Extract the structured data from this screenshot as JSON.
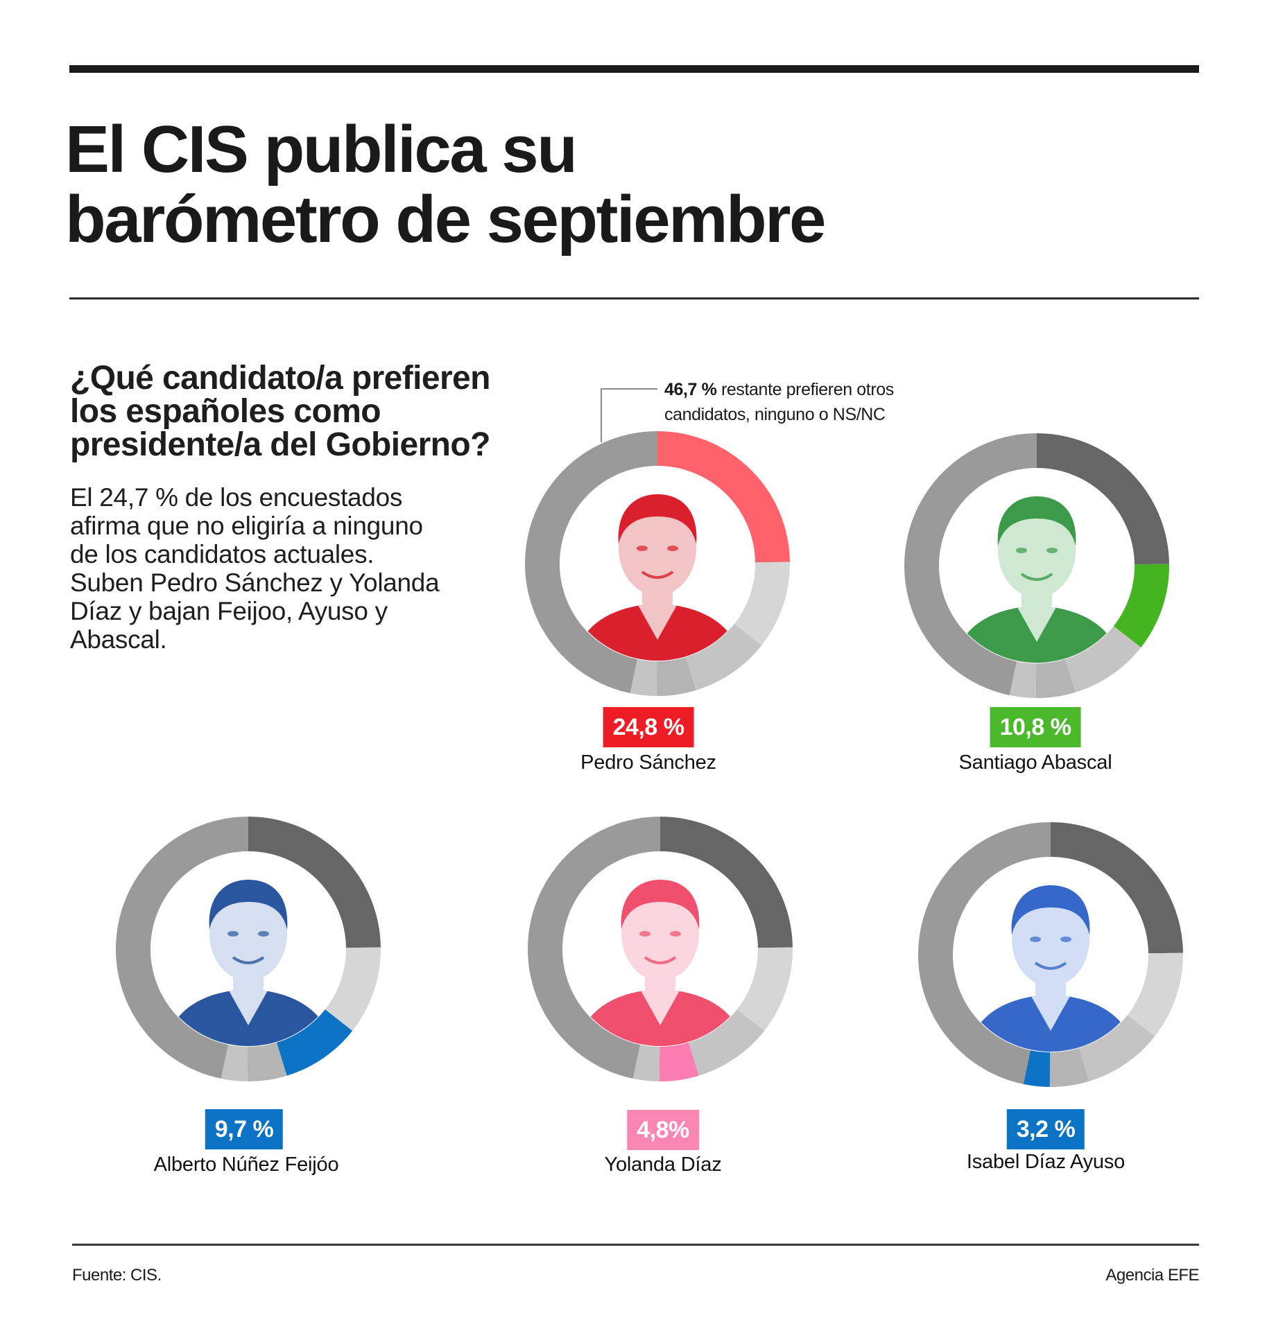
{
  "header": {
    "title_lines": [
      "El CIS publica su",
      "barómetro de septiembre"
    ]
  },
  "intro": {
    "question_lines": [
      "¿Qué candidato/a prefieren",
      "los españoles como",
      "presidente/a del Gobierno?"
    ],
    "lede_lines": [
      "El 24,7 % de los encuestados",
      "afirma que no eligiría a ninguno",
      "de los candidatos actuales.",
      "Suben Pedro Sánchez y Yolanda",
      "Díaz y bajan Feijoo, Ayuso y",
      "Abascal."
    ]
  },
  "annotation": {
    "value": "46,7 %",
    "line1_rest": " restante prefieren otros",
    "line2": "candidatos, ninguno o NS/NC"
  },
  "colors": {
    "ring_remainder": "#9a9a9a",
    "ring_first_dim": "#666666",
    "ring_light": "#d6d6d6",
    "ring_mid": "#c4c4c4",
    "ring_small": "#b4b4b4",
    "psoe_red": "#ee1c25",
    "psoe_ring": "#ff626b",
    "vox_green": "#4cb82c",
    "vox_ring": "#44b521",
    "pp_blue": "#0b72c4",
    "sumar_pink": "#fa86b4",
    "sumar_ring": "#fc7db2"
  },
  "chart_data": {
    "type": "pie",
    "title": "¿Qué candidato/a prefieren los españoles como presidente/a del Gobierno?",
    "subtitle": "El 24,7 % de los encuestados afirma que no eligiría a ninguno de los candidatos actuales.",
    "unit": "%",
    "categories": [
      "Pedro Sánchez",
      "Santiago Abascal",
      "Alberto Núñez Feijóo",
      "Yolanda Díaz",
      "Isabel Díaz Ayuso",
      "Otros / ninguno / NS/NC"
    ],
    "values": [
      24.8,
      10.8,
      9.7,
      4.8,
      3.2,
      46.7
    ],
    "annotations": [
      "46,7 % restante prefieren otros candidatos, ninguno o NS/NC"
    ],
    "source": "Fuente: CIS.",
    "credit": "Agencia EFE"
  },
  "candidates": [
    {
      "name": "Pedro Sánchez",
      "value_label": "24,8 %",
      "highlight_index": 0,
      "badge_color": "#ee1c25",
      "ring_color": "#ff626b",
      "tint": "#d9202c",
      "tint_light": "#f3c4c6"
    },
    {
      "name": "Santiago Abascal",
      "value_label": "10,8 %",
      "highlight_index": 1,
      "badge_color": "#4cb82c",
      "ring_color": "#44b521",
      "tint": "#3d9a4a",
      "tint_light": "#cfe8d2"
    },
    {
      "name": "Alberto Núñez Feijóo",
      "value_label": "9,7 %",
      "highlight_index": 2,
      "badge_color": "#0b72c4",
      "ring_color": "#0b72c4",
      "tint": "#2a56a0",
      "tint_light": "#d5dff0"
    },
    {
      "name": "Yolanda Díaz",
      "value_label": "4,8%",
      "highlight_index": 3,
      "badge_color": "#fa86b4",
      "ring_color": "#fc7db2",
      "tint": "#f0506e",
      "tint_light": "#fbd6de"
    },
    {
      "name": "Isabel Díaz Ayuso",
      "value_label": "3,2 %",
      "highlight_index": 4,
      "badge_color": "#0b72c4",
      "ring_color": "#0b72c4",
      "tint": "#3568c8",
      "tint_light": "#d2def5"
    }
  ],
  "footer": {
    "source": "Fuente: CIS.",
    "credit": "Agencia EFE"
  }
}
